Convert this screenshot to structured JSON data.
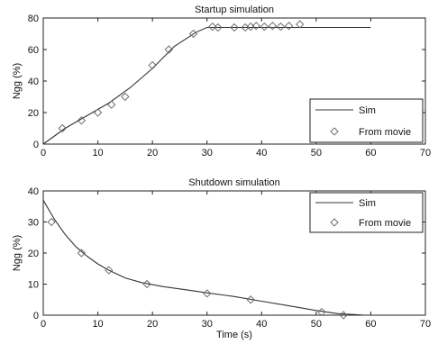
{
  "chart_data": [
    {
      "type": "line",
      "title": "Startup simulation",
      "xlabel": "",
      "ylabel": "Ngg (%)",
      "xlim": [
        0,
        70
      ],
      "ylim": [
        0,
        80
      ],
      "xticks": [
        "0",
        "10",
        "20",
        "30",
        "40",
        "50",
        "60",
        "70"
      ],
      "yticks": [
        "0",
        "20",
        "40",
        "60",
        "80"
      ],
      "grid": false,
      "legend_position": "bottom-right",
      "series": [
        {
          "name": "Sim",
          "style": "line",
          "x": [
            0,
            4,
            8,
            12,
            16,
            20,
            24,
            28,
            30,
            32,
            36,
            40,
            44,
            48,
            52,
            56,
            60
          ],
          "y": [
            0,
            10,
            18,
            26,
            36,
            48,
            62,
            71,
            74,
            74,
            74,
            74,
            74,
            74,
            74,
            74,
            74
          ]
        },
        {
          "name": "From movie",
          "style": "markers",
          "marker": "diamond",
          "x": [
            3.5,
            7,
            10,
            12.5,
            15,
            20,
            23,
            27.5,
            31,
            32,
            35,
            37,
            38,
            39,
            40.5,
            42,
            43.5,
            45,
            47
          ],
          "y": [
            10,
            15,
            20,
            25,
            30,
            50,
            60,
            70,
            74.5,
            74,
            74,
            74,
            74.5,
            75,
            74.5,
            75,
            74.5,
            75,
            76
          ]
        }
      ]
    },
    {
      "type": "line",
      "title": "Shutdown simulation",
      "xlabel": "Time (s)",
      "ylabel": "Ngg (%)",
      "xlim": [
        0,
        70
      ],
      "ylim": [
        0,
        40
      ],
      "xticks": [
        "0",
        "10",
        "20",
        "30",
        "40",
        "50",
        "60",
        "70"
      ],
      "yticks": [
        "0",
        "10",
        "20",
        "30",
        "40"
      ],
      "grid": false,
      "legend_position": "top-right",
      "series": [
        {
          "name": "Sim",
          "style": "line",
          "x": [
            0,
            2,
            4,
            6,
            8,
            10,
            12,
            15,
            18,
            22,
            26,
            30,
            35,
            40,
            45,
            50,
            54,
            57,
            59
          ],
          "y": [
            37,
            31,
            26,
            22,
            19,
            16.5,
            14.5,
            12,
            10.5,
            9.2,
            8.2,
            7.2,
            6,
            4.5,
            3,
            1.5,
            0.5,
            0.2,
            0
          ]
        },
        {
          "name": "From movie",
          "style": "markers",
          "marker": "diamond",
          "x": [
            1.5,
            7,
            12,
            19,
            30,
            38,
            51,
            55
          ],
          "y": [
            30,
            20,
            14.5,
            10,
            7,
            5,
            1,
            0
          ]
        }
      ]
    }
  ]
}
